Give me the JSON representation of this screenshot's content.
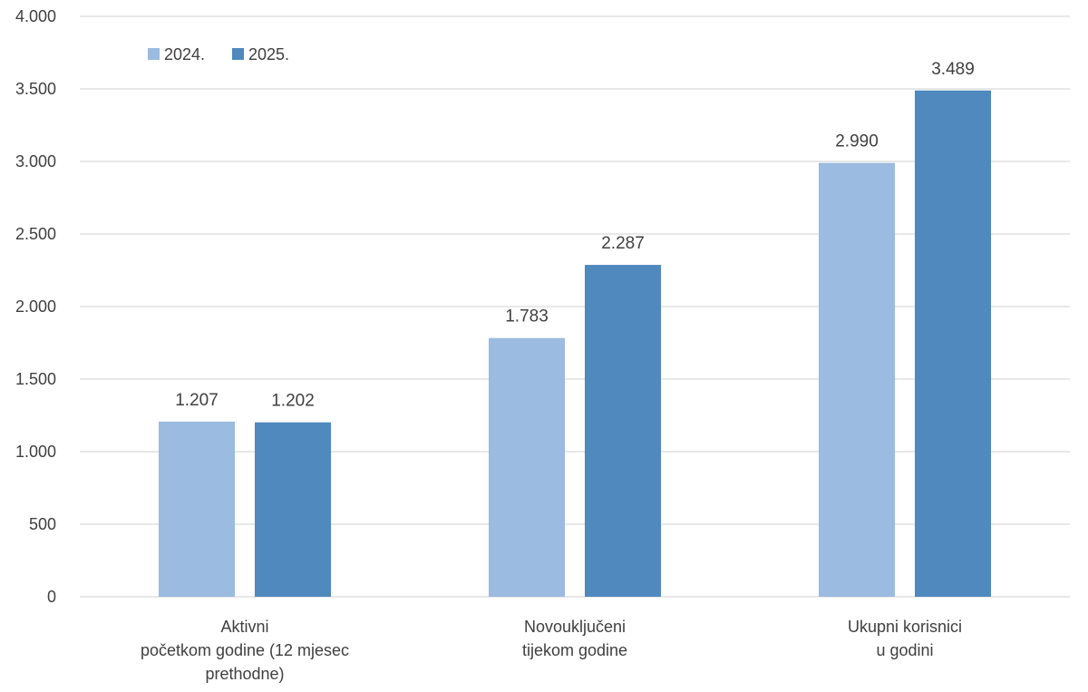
{
  "chart_data": {
    "type": "bar",
    "categories": [
      [
        "Aktivni",
        "početkom godine (12 mjesec",
        "prethodne)"
      ],
      [
        "Novouključeni",
        "tijekom godine"
      ],
      [
        "Ukupni korisnici",
        "u godini"
      ]
    ],
    "series": [
      {
        "name": "2024.",
        "color": "#9bbbe0",
        "values": [
          1207,
          1783,
          2990
        ],
        "labels": [
          "1.207",
          "1.783",
          "2.990"
        ]
      },
      {
        "name": "2025.",
        "color": "#4f89bd",
        "values": [
          1202,
          2287,
          3489
        ],
        "labels": [
          "1.202",
          "2.287",
          "3.489"
        ]
      }
    ],
    "ylim": [
      0,
      4000
    ],
    "yticks": [
      0,
      500,
      1000,
      1500,
      2000,
      2500,
      3000,
      3500,
      4000
    ],
    "ytick_labels": [
      "0",
      "500",
      "1.000",
      "1.500",
      "2.000",
      "2.500",
      "3.000",
      "3.500",
      "4.000"
    ],
    "grid": true,
    "legend_position": "top-left"
  }
}
